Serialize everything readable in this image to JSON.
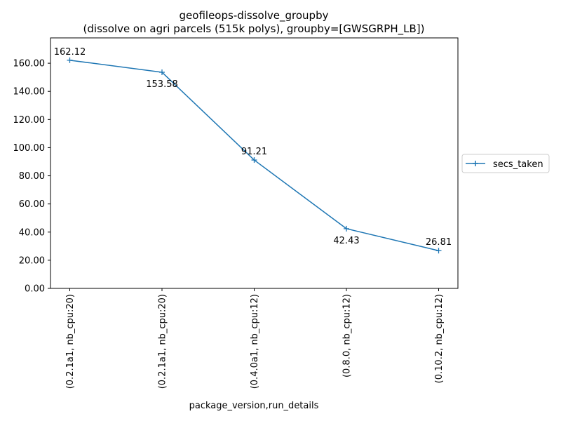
{
  "chart_data": {
    "type": "line",
    "title": "geofileops-dissolve_groupby",
    "subtitle": "(dissolve on agri parcels (515k polys), groupby=[GWSGRPH_LB])",
    "xlabel": "package_version,run_details",
    "ylabel": "",
    "categories": [
      "(0.2.1a1, nb_cpu:20)",
      "(0.2.1a1, nb_cpu:20)",
      "(0.4.0a1, nb_cpu:12)",
      "(0.8.0, nb_cpu:12)",
      "(0.10.2, nb_cpu:12)"
    ],
    "series": [
      {
        "name": "secs_taken",
        "values": [
          162.12,
          153.58,
          91.21,
          42.43,
          26.81
        ],
        "labels": [
          "162.12",
          "153.58",
          "91.21",
          "42.43",
          "26.81"
        ],
        "label_positions": [
          "above",
          "below",
          "above",
          "below",
          "above"
        ],
        "color": "#1f77b4",
        "marker": "+"
      }
    ],
    "ylim": [
      0,
      178
    ],
    "yticks": [
      0,
      20,
      40,
      60,
      80,
      100,
      120,
      140,
      160
    ],
    "ytick_labels": [
      "0.00",
      "20.00",
      "40.00",
      "60.00",
      "80.00",
      "100.00",
      "120.00",
      "140.00",
      "160.00"
    ],
    "grid": false,
    "legend": {
      "placement": "center-right-outside",
      "entries": [
        "secs_taken"
      ]
    }
  }
}
